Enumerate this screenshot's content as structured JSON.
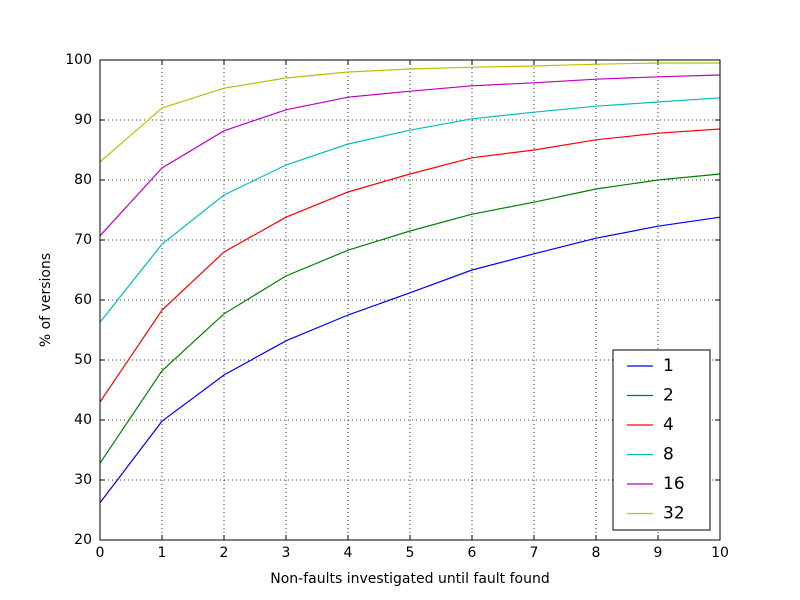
{
  "chart_data": {
    "type": "line",
    "xlabel": "Non-faults investigated until fault found",
    "ylabel": "% of versions",
    "x": [
      0,
      1,
      2,
      3,
      4,
      5,
      6,
      7,
      8,
      9,
      10
    ],
    "series": [
      {
        "name": "1",
        "color": "#0000ff",
        "values": [
          26.2,
          39.8,
          47.5,
          53.2,
          57.5,
          61.2,
          65,
          67.7,
          70.3,
          72.3,
          73.8
        ]
      },
      {
        "name": "2",
        "color": "#008000",
        "values": [
          32.8,
          48.2,
          57.7,
          64,
          68.3,
          71.5,
          74.3,
          76.3,
          78.5,
          80,
          81
        ]
      },
      {
        "name": "4",
        "color": "#ff0000",
        "values": [
          43,
          58.3,
          68,
          73.8,
          78,
          81,
          83.7,
          85,
          86.7,
          87.8,
          88.5
        ]
      },
      {
        "name": "8",
        "color": "#00bfbf",
        "values": [
          56.3,
          69.3,
          77.5,
          82.5,
          86,
          88.3,
          90.2,
          91.3,
          92.3,
          93,
          93.7
        ]
      },
      {
        "name": "16",
        "color": "#bf00bf",
        "values": [
          70.7,
          82,
          88.2,
          91.7,
          93.8,
          94.8,
          95.7,
          96.2,
          96.8,
          97.2,
          97.5
        ]
      },
      {
        "name": "32",
        "color": "#bfbf00",
        "values": [
          83,
          92,
          95.3,
          97,
          98,
          98.5,
          98.8,
          99,
          99.3,
          99.5,
          99.5
        ]
      }
    ],
    "xlim": [
      0,
      10
    ],
    "xticks": [
      0,
      1,
      2,
      3,
      4,
      5,
      6,
      7,
      8,
      9,
      10
    ],
    "ylim": [
      20,
      100
    ],
    "yticks": [
      20,
      30,
      40,
      50,
      60,
      70,
      80,
      90,
      100
    ],
    "grid": true,
    "legend": "lower right"
  }
}
